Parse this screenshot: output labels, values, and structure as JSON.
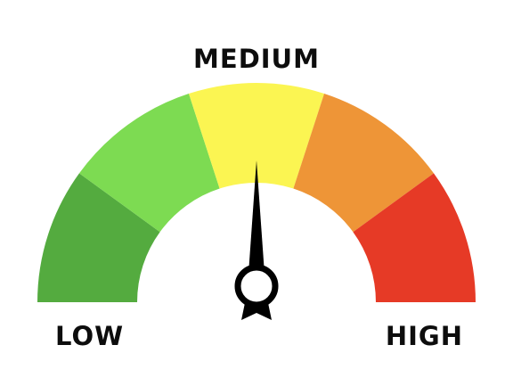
{
  "labels": {
    "low": "LOW",
    "medium": "MEDIUM",
    "high": "HIGH"
  },
  "gauge": {
    "segments": [
      {
        "name": "green-dark",
        "color": "#54ab3f"
      },
      {
        "name": "green-light",
        "color": "#7ddb52"
      },
      {
        "name": "yellow",
        "color": "#fbf552"
      },
      {
        "name": "orange",
        "color": "#ee9537"
      },
      {
        "name": "red",
        "color": "#e63a26"
      }
    ],
    "needle_color": "#000000",
    "needle_level_percent": 50
  }
}
